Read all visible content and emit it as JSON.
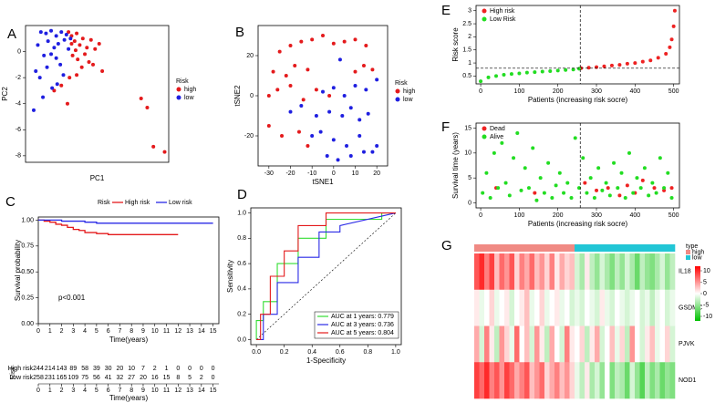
{
  "chart_data": [
    {
      "type": "scatter",
      "panel": "A",
      "xlabel": "PC1",
      "ylabel": "PC2",
      "xlim": [
        -4,
        10
      ],
      "ylim": [
        -8.5,
        2
      ],
      "xticks": [],
      "yticks": [
        0,
        -2,
        -4,
        -6,
        -8
      ],
      "legend": "right",
      "legend_title": "Risk",
      "series": [
        {
          "name": "high",
          "color": "#e41a1c",
          "x": [
            0.2,
            0.5,
            0.8,
            1.0,
            1.3,
            1.6,
            2.0,
            2.4,
            2.8,
            3.2,
            0.6,
            1.1,
            1.8,
            2.2,
            0.9,
            1.5,
            2.6,
            3.5,
            0.3,
            -0.5,
            -1.2,
            0.1,
            7.3,
            7.9,
            8.5,
            9.6,
            1.0,
            0.5
          ],
          "y": [
            1.5,
            1.2,
            0.8,
            1.4,
            0.5,
            1.0,
            0.3,
            0.9,
            0.2,
            0.6,
            -0.3,
            -0.6,
            -0.2,
            -0.8,
            0.1,
            -1.2,
            -1.0,
            -1.5,
            -2.0,
            -2.6,
            -3.0,
            -4.0,
            -3.6,
            -4.3,
            -7.3,
            -7.7,
            -1.8,
            0.6
          ]
        },
        {
          "name": "low",
          "color": "#1f1fe0",
          "x": [
            -2.5,
            -2.0,
            -1.5,
            -1.0,
            -0.5,
            0.0,
            0.4,
            -2.8,
            -1.8,
            -1.2,
            -0.8,
            -0.2,
            0.2,
            -2.2,
            -1.5,
            -1.0,
            -0.6,
            -3.0,
            -2.6,
            -1.9,
            -0.9,
            -0.3,
            -2.3,
            -3.2,
            -1.4
          ],
          "y": [
            1.5,
            1.4,
            1.6,
            1.2,
            1.5,
            1.3,
            1.0,
            0.5,
            0.8,
            0.3,
            0.6,
            0.9,
            0.2,
            -0.3,
            -0.2,
            -0.5,
            -1.0,
            -1.5,
            -2.0,
            -1.2,
            -2.5,
            -1.8,
            -3.5,
            -4.5,
            -2.8
          ]
        }
      ]
    },
    {
      "type": "scatter",
      "panel": "B",
      "xlabel": "tSNE1",
      "ylabel": "tSNE2",
      "xlim": [
        -35,
        25
      ],
      "ylim": [
        -35,
        35
      ],
      "xticks": [
        -30,
        -20,
        -10,
        0,
        10,
        20
      ],
      "yticks": [
        -20,
        0,
        20
      ],
      "legend": "right",
      "legend_title": "Risk",
      "series": [
        {
          "name": "high",
          "color": "#e41a1c",
          "x": [
            -25,
            -20,
            -15,
            -10,
            -5,
            0,
            5,
            10,
            15,
            -28,
            -22,
            -18,
            -12,
            -30,
            -26,
            -20,
            -14,
            -8,
            -2,
            10,
            14,
            18,
            -30,
            -24,
            -16,
            -12
          ],
          "y": [
            22,
            25,
            27,
            28,
            30,
            26,
            27,
            28,
            25,
            12,
            10,
            15,
            13,
            0,
            3,
            5,
            -2,
            3,
            0,
            12,
            15,
            13,
            -15,
            -20,
            -18,
            -25
          ]
        },
        {
          "name": "low",
          "color": "#1f1fe0",
          "x": [
            -5,
            0,
            5,
            10,
            15,
            20,
            -2,
            4,
            8,
            12,
            16,
            -10,
            -6,
            0,
            6,
            12,
            18,
            -15,
            -8,
            -3,
            2,
            8,
            14,
            20,
            3,
            -20
          ],
          "y": [
            2,
            4,
            0,
            5,
            3,
            8,
            -8,
            -10,
            -6,
            -12,
            -9,
            -20,
            -18,
            -22,
            -25,
            -20,
            -28,
            -5,
            -10,
            -30,
            -32,
            -30,
            -28,
            -25,
            18,
            -8
          ]
        }
      ]
    },
    {
      "type": "km",
      "panel": "C",
      "xlabel": "Time(years)",
      "ylabel": "Survival probability",
      "xlim": [
        0,
        15.5
      ],
      "ylim": [
        0,
        1.03
      ],
      "xticks": [
        0,
        1,
        2,
        3,
        4,
        5,
        6,
        7,
        8,
        9,
        10,
        11,
        12,
        13,
        14,
        15
      ],
      "yticks": [
        {
          "value": 0,
          "label": "0.00"
        },
        0.25,
        {
          "value": 0.5,
          "label": "0.50"
        },
        0.75,
        {
          "value": 1,
          "label": "1.00"
        }
      ],
      "legend_title": "Risk",
      "annotation": "p<0.001",
      "series": [
        {
          "name": "High risk",
          "color": "#e41a1c",
          "x": [
            0,
            0.5,
            1,
            1.5,
            2,
            2.5,
            3,
            3.5,
            4,
            5,
            6,
            8,
            10,
            12
          ],
          "y": [
            1,
            0.99,
            0.98,
            0.96,
            0.95,
            0.93,
            0.91,
            0.9,
            0.88,
            0.87,
            0.86,
            0.86,
            0.86,
            0.86
          ]
        },
        {
          "name": "Low risk",
          "color": "#2a2ae6",
          "x": [
            0,
            1,
            2,
            3,
            4,
            5,
            8,
            12,
            15
          ],
          "y": [
            1,
            1,
            0.99,
            0.99,
            0.98,
            0.97,
            0.97,
            0.97,
            0.97
          ]
        }
      ],
      "risk_table": {
        "title": "Risk",
        "xlabel": "Time(years)",
        "rows": [
          {
            "name": "High risk",
            "color": "#e41a1c",
            "values": [
              244,
              214,
              143,
              89,
              58,
              39,
              30,
              20,
              10,
              7,
              2,
              1,
              0,
              0,
              0,
              0
            ]
          },
          {
            "name": "Low risk",
            "color": "#2a2ae6",
            "values": [
              258,
              231,
              165,
              109,
              75,
              56,
              41,
              32,
              27,
              20,
              16,
              15,
              8,
              5,
              2,
              0
            ]
          }
        ]
      }
    },
    {
      "type": "roc",
      "panel": "D",
      "xlabel": "1-Specificity",
      "ylabel": "Sensitivity",
      "xlim": [
        -0.04,
        1.04
      ],
      "ylim": [
        -0.04,
        1.04
      ],
      "xticks": [
        {
          "value": 0,
          "label": "0.0"
        },
        0.2,
        0.4,
        0.6,
        0.8,
        {
          "value": 1,
          "label": "1.0"
        }
      ],
      "yticks": [
        {
          "value": 0,
          "label": "0.0"
        },
        0.2,
        0.4,
        0.6,
        0.8,
        {
          "value": 1,
          "label": "1.0"
        }
      ],
      "legend": "bottom-right",
      "series": [
        {
          "name": "AUC at 1 years: 0.779",
          "color": "#33dd33",
          "x": [
            0,
            0,
            0.05,
            0.05,
            0.15,
            0.15,
            0.3,
            0.3,
            0.5,
            0.5,
            0.9,
            0.9,
            1
          ],
          "y": [
            0,
            0.15,
            0.15,
            0.3,
            0.3,
            0.6,
            0.6,
            0.8,
            0.8,
            0.95,
            0.95,
            1,
            1
          ]
        },
        {
          "name": "AUC at 3 years: 0.736",
          "color": "#2a2ae6",
          "x": [
            0,
            0.05,
            0.05,
            0.15,
            0.15,
            0.3,
            0.3,
            0.45,
            0.45,
            0.6,
            0.6,
            1
          ],
          "y": [
            0,
            0,
            0.2,
            0.2,
            0.45,
            0.45,
            0.65,
            0.65,
            0.85,
            0.85,
            0.9,
            1
          ]
        },
        {
          "name": "AUC at 5 years: 0.804",
          "color": "#e41a1c",
          "x": [
            0,
            0.03,
            0.03,
            0.1,
            0.1,
            0.2,
            0.2,
            0.3,
            0.3,
            0.5,
            0.5,
            1
          ],
          "y": [
            0,
            0,
            0.2,
            0.2,
            0.5,
            0.5,
            0.7,
            0.7,
            0.9,
            0.9,
            1,
            1
          ]
        }
      ]
    },
    {
      "type": "scatter",
      "panel": "E",
      "xlabel": "Patients (increasing risk socre)",
      "ylabel": "Risk score",
      "xlim": [
        -12,
        515
      ],
      "ylim": [
        0.2,
        3.2
      ],
      "xticks": [
        0,
        100,
        200,
        300,
        400,
        500
      ],
      "yticks": [
        0.5,
        1,
        1.5,
        2,
        2.5,
        3
      ],
      "legend": "top-left",
      "cutoff_x": 258,
      "cutoff_y": 0.8,
      "series": [
        {
          "name": "High risk",
          "color": "#ee2222",
          "x": [
            260,
            280,
            300,
            320,
            340,
            360,
            380,
            400,
            420,
            440,
            460,
            480,
            490,
            495,
            500,
            503
          ],
          "y": [
            0.8,
            0.82,
            0.84,
            0.87,
            0.9,
            0.93,
            0.97,
            1.0,
            1.05,
            1.1,
            1.2,
            1.35,
            1.6,
            1.9,
            2.4,
            3.0
          ]
        },
        {
          "name": "Low Risk",
          "color": "#22dd22",
          "x": [
            0,
            20,
            40,
            60,
            80,
            100,
            120,
            140,
            160,
            180,
            200,
            220,
            240,
            255
          ],
          "y": [
            0.3,
            0.45,
            0.5,
            0.55,
            0.58,
            0.6,
            0.63,
            0.65,
            0.67,
            0.69,
            0.71,
            0.73,
            0.75,
            0.78
          ]
        }
      ]
    },
    {
      "type": "scatter",
      "panel": "F",
      "xlabel": "Patients (increasing risk socre)",
      "ylabel": "Survival time (years)",
      "xlim": [
        -12,
        515
      ],
      "ylim": [
        -1,
        16
      ],
      "xticks": [
        0,
        100,
        200,
        300,
        400,
        500
      ],
      "yticks": [
        0,
        5,
        10,
        15
      ],
      "legend": "top-left",
      "cutoff_x": 258,
      "series": [
        {
          "name": "Dead",
          "color": "#ee2222",
          "x": [
            40,
            140,
            270,
            300,
            330,
            360,
            380,
            400,
            420,
            450,
            475,
            495
          ],
          "y": [
            3,
            2,
            4,
            2.5,
            3,
            1.5,
            3.5,
            2,
            4.5,
            3,
            2.5,
            3
          ]
        },
        {
          "name": "Alive",
          "color": "#22dd22",
          "x": [
            5,
            15,
            25,
            35,
            45,
            55,
            65,
            75,
            85,
            95,
            105,
            115,
            125,
            135,
            145,
            155,
            165,
            175,
            185,
            195,
            205,
            215,
            225,
            235,
            245,
            255,
            265,
            275,
            285,
            295,
            305,
            315,
            325,
            335,
            345,
            355,
            365,
            375,
            385,
            395,
            405,
            415,
            425,
            435,
            445,
            455,
            465,
            475,
            485,
            495
          ],
          "y": [
            2,
            6,
            1,
            10,
            3,
            12,
            4,
            1.5,
            9,
            14,
            2.5,
            7,
            3,
            11,
            0.5,
            5,
            2,
            8,
            1,
            3.5,
            6,
            2,
            4,
            1,
            13,
            3,
            9,
            2,
            5,
            1,
            7,
            2.5,
            4,
            1.5,
            8,
            3,
            6,
            1,
            10,
            2,
            5,
            3,
            7,
            1.5,
            4,
            2,
            9,
            3,
            6,
            1
          ]
        }
      ]
    },
    {
      "type": "heatmap",
      "panel": "G",
      "legend_title": "type",
      "clim": [
        -12,
        12
      ],
      "cticks": [
        10,
        5,
        0,
        -5,
        -10
      ],
      "groups": [
        {
          "name": "high",
          "color": "#f08a84"
        },
        {
          "name": "low",
          "color": "#22c6d6"
        }
      ],
      "column_groups": [
        "high",
        "high",
        "high",
        "high",
        "high",
        "high",
        "high",
        "high",
        "high",
        "high",
        "high",
        "high",
        "high",
        "high",
        "high",
        "high",
        "high",
        "high",
        "high",
        "high",
        "low",
        "low",
        "low",
        "low",
        "low",
        "low",
        "low",
        "low",
        "low",
        "low",
        "low",
        "low",
        "low",
        "low",
        "low",
        "low",
        "low",
        "low",
        "low",
        "low"
      ],
      "rows": [
        {
          "name": "IL18",
          "values": [
            8,
            10,
            6,
            9,
            3,
            7,
            5,
            8,
            2,
            6,
            4,
            7,
            3,
            5,
            2,
            6,
            1,
            4,
            2,
            3,
            -2,
            -4,
            1,
            -3,
            -5,
            -2,
            -4,
            -6,
            -3,
            -5,
            -2,
            -4,
            -7,
            -3,
            -5,
            -6,
            -4,
            -2,
            -5,
            -3
          ]
        },
        {
          "name": "GSDMC",
          "values": [
            1,
            -1,
            0,
            2,
            -1,
            0,
            1,
            -2,
            0,
            1,
            3,
            -1,
            0,
            2,
            -1,
            0,
            1,
            -1,
            0,
            -2,
            -1,
            -2,
            0,
            -1,
            -2,
            1,
            -1,
            -2,
            0,
            -1,
            -2,
            -1,
            0,
            -2,
            -1,
            -3,
            -1,
            0,
            -2,
            -1
          ]
        },
        {
          "name": "PJVK",
          "values": [
            4,
            -2,
            6,
            1,
            -3,
            5,
            2,
            -1,
            7,
            0,
            3,
            -2,
            5,
            1,
            -3,
            4,
            0,
            -2,
            6,
            1,
            0,
            2,
            -3,
            1,
            4,
            -2,
            0,
            3,
            -1,
            2,
            -3,
            5,
            0,
            -2,
            1,
            3,
            -1,
            0,
            2,
            -2
          ]
        },
        {
          "name": "NOD1",
          "values": [
            9,
            7,
            10,
            6,
            8,
            5,
            9,
            7,
            4,
            6,
            8,
            3,
            5,
            7,
            2,
            4,
            6,
            3,
            5,
            2,
            -1,
            -3,
            1,
            -4,
            -2,
            -5,
            0,
            -6,
            -3,
            -4,
            -7,
            -2,
            -5,
            -8,
            -3,
            -6,
            -4,
            -7,
            -5,
            -6
          ]
        }
      ]
    }
  ]
}
